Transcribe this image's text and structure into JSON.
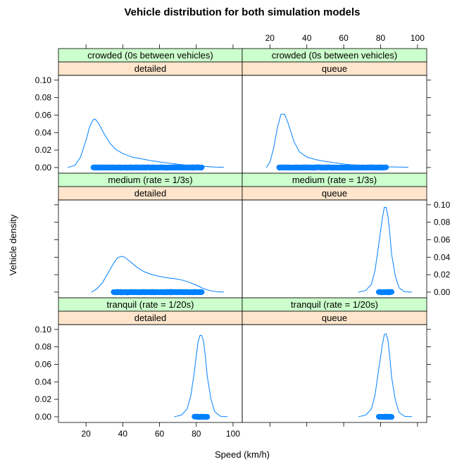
{
  "chart_data": {
    "type": "density",
    "title": "Vehicle distribution for both simulation models",
    "xlabel": "Speed (km/h)",
    "ylabel": "Vehicle density",
    "xlim": [
      5,
      105
    ],
    "ylim": [
      -0.0065,
      0.1055
    ],
    "x_ticks": [
      20,
      40,
      60,
      80,
      100
    ],
    "y_ticks": [
      0.0,
      0.02,
      0.04,
      0.06,
      0.08,
      0.1
    ],
    "y_tick_labels": [
      "0.00",
      "0.02",
      "0.04",
      "0.06",
      "0.08",
      "0.10"
    ],
    "colors": {
      "line": "#0080ff",
      "points": "#0080ff",
      "strip_outer": "#ccffcc",
      "strip_inner": "#ffe5cc",
      "frame": "#000000"
    },
    "panels": [
      {
        "strip_outer": "crowded (0s between vehicles)",
        "strip_inner": "detailed",
        "density": [
          [
            10,
            0
          ],
          [
            14,
            0.0025
          ],
          [
            17,
            0.012
          ],
          [
            20,
            0.031
          ],
          [
            22,
            0.047
          ],
          [
            24,
            0.055
          ],
          [
            25,
            0.0555
          ],
          [
            27,
            0.05
          ],
          [
            30,
            0.038
          ],
          [
            33,
            0.028
          ],
          [
            36,
            0.021
          ],
          [
            40,
            0.016
          ],
          [
            45,
            0.012
          ],
          [
            50,
            0.01
          ],
          [
            55,
            0.008
          ],
          [
            60,
            0.0065
          ],
          [
            65,
            0.005
          ],
          [
            70,
            0.0038
          ],
          [
            75,
            0.0028
          ],
          [
            80,
            0.002
          ],
          [
            85,
            0.0012
          ],
          [
            90,
            0.0005
          ],
          [
            95,
            0.0002
          ]
        ],
        "rug_range": [
          24,
          83
        ]
      },
      {
        "strip_outer": "crowded (0s between vehicles)",
        "strip_inner": "queue",
        "density": [
          [
            18,
            0
          ],
          [
            20,
            0.006
          ],
          [
            22,
            0.022
          ],
          [
            24,
            0.045
          ],
          [
            26,
            0.061
          ],
          [
            28,
            0.061
          ],
          [
            30,
            0.05
          ],
          [
            33,
            0.03
          ],
          [
            36,
            0.018
          ],
          [
            40,
            0.012
          ],
          [
            45,
            0.009
          ],
          [
            50,
            0.007
          ],
          [
            55,
            0.0055
          ],
          [
            60,
            0.004
          ],
          [
            65,
            0.003
          ],
          [
            70,
            0.0022
          ],
          [
            75,
            0.0016
          ],
          [
            80,
            0.001
          ],
          [
            85,
            0.0008
          ],
          [
            90,
            0.0005
          ],
          [
            95,
            0.0003
          ]
        ],
        "rug_range": [
          25,
          83
        ]
      },
      {
        "strip_outer": "medium (rate = 1/3s)",
        "strip_inner": "detailed",
        "density": [
          [
            23,
            0
          ],
          [
            26,
            0.004
          ],
          [
            29,
            0.011
          ],
          [
            32,
            0.022
          ],
          [
            35,
            0.033
          ],
          [
            37,
            0.039
          ],
          [
            39,
            0.041
          ],
          [
            41,
            0.04
          ],
          [
            44,
            0.035
          ],
          [
            48,
            0.028
          ],
          [
            52,
            0.023
          ],
          [
            56,
            0.02
          ],
          [
            60,
            0.018
          ],
          [
            64,
            0.0165
          ],
          [
            68,
            0.0155
          ],
          [
            72,
            0.014
          ],
          [
            76,
            0.0115
          ],
          [
            80,
            0.008
          ],
          [
            84,
            0.004
          ],
          [
            88,
            0.0015
          ],
          [
            92,
            0.0003
          ],
          [
            95,
            0
          ]
        ],
        "rug_range": [
          35,
          83
        ]
      },
      {
        "strip_outer": "medium (rate = 1/3s)",
        "strip_inner": "queue",
        "density": [
          [
            68,
            0
          ],
          [
            72,
            0.002
          ],
          [
            75,
            0.009
          ],
          [
            77,
            0.025
          ],
          [
            79,
            0.055
          ],
          [
            81,
            0.085
          ],
          [
            82,
            0.097
          ],
          [
            83,
            0.097
          ],
          [
            84,
            0.087
          ],
          [
            85,
            0.067
          ],
          [
            86,
            0.043
          ],
          [
            88,
            0.018
          ],
          [
            90,
            0.005
          ],
          [
            93,
            0.0005
          ],
          [
            97,
            0
          ]
        ],
        "rug_range": [
          79,
          86
        ]
      },
      {
        "strip_outer": "tranquil (rate = 1/20s)",
        "strip_inner": "detailed",
        "density": [
          [
            68,
            0
          ],
          [
            72,
            0.002
          ],
          [
            75,
            0.009
          ],
          [
            77,
            0.024
          ],
          [
            79,
            0.052
          ],
          [
            80,
            0.07
          ],
          [
            81,
            0.086
          ],
          [
            82,
            0.093
          ],
          [
            83,
            0.093
          ],
          [
            84,
            0.086
          ],
          [
            85,
            0.068
          ],
          [
            86,
            0.046
          ],
          [
            88,
            0.02
          ],
          [
            90,
            0.006
          ],
          [
            93,
            0.0006
          ],
          [
            97,
            0
          ]
        ],
        "rug_range": [
          79,
          86
        ]
      },
      {
        "strip_outer": "tranquil (rate = 1/20s)",
        "strip_inner": "queue",
        "density": [
          [
            68,
            0
          ],
          [
            72,
            0.002
          ],
          [
            75,
            0.009
          ],
          [
            77,
            0.025
          ],
          [
            79,
            0.055
          ],
          [
            81,
            0.083
          ],
          [
            82,
            0.094
          ],
          [
            83,
            0.095
          ],
          [
            84,
            0.087
          ],
          [
            85,
            0.068
          ],
          [
            86,
            0.045
          ],
          [
            88,
            0.019
          ],
          [
            90,
            0.005
          ],
          [
            93,
            0.0005
          ],
          [
            97,
            0
          ]
        ],
        "rug_range": [
          79,
          86
        ]
      }
    ]
  }
}
